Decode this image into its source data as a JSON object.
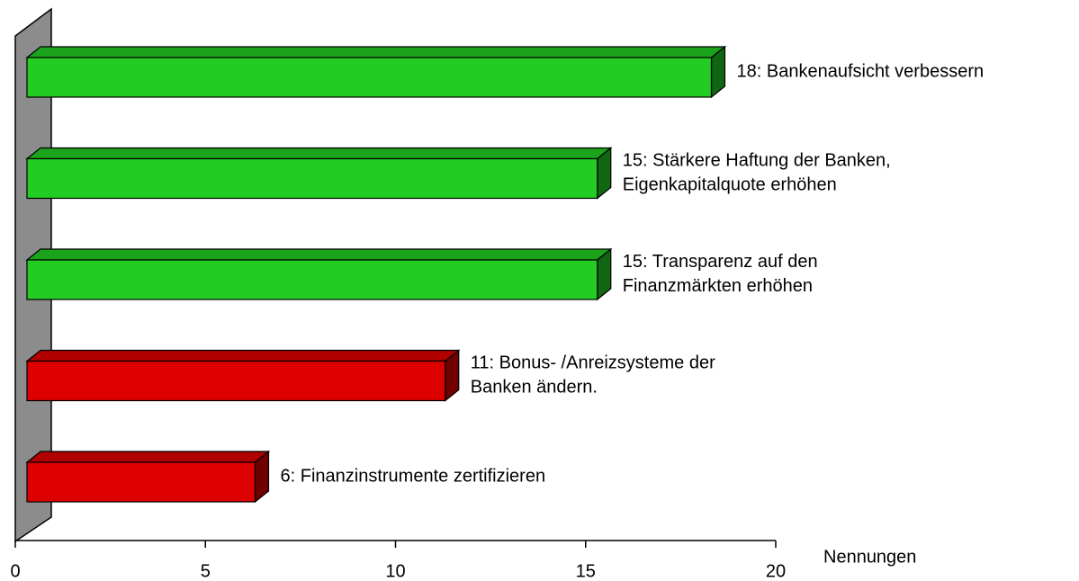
{
  "chart_data": {
    "type": "bar3d_horizontal",
    "categories": [
      [
        "18: Bankenaufsicht verbessern"
      ],
      [
        "15: Stärkere Haftung der Banken,",
        "Eigenkapitalquote erhöhen"
      ],
      [
        "15: Transparenz auf den",
        "Finanzmärkten erhöhen"
      ],
      [
        "11: Bonus- /Anreizsysteme der",
        "Banken ändern."
      ],
      [
        "6: Finanzinstrumente zertifizieren"
      ]
    ],
    "values": [
      18,
      15,
      15,
      11,
      6
    ],
    "colors": [
      "#22cc22",
      "#22cc22",
      "#22cc22",
      "#dd0000",
      "#dd0000"
    ],
    "xlim": [
      0,
      20
    ],
    "xticks": [
      0,
      5,
      10,
      15,
      20
    ],
    "xlabel": "Nennungen"
  }
}
